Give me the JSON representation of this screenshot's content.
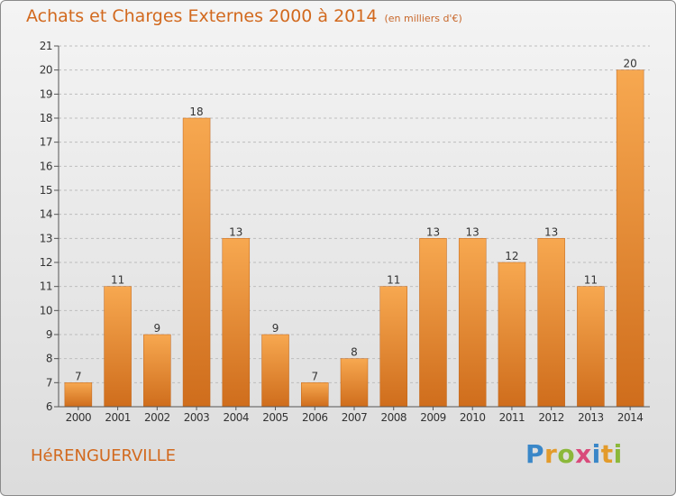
{
  "page": {
    "title": "Achats et Charges Externes 2000 à 2014",
    "unit": "(en milliers d'€)",
    "town": "HéRENGUERVILLE",
    "brand": {
      "text": "Proxiti",
      "letters": [
        {
          "char": "P",
          "color": "#3a87c8"
        },
        {
          "char": "r",
          "color": "#e39b2b"
        },
        {
          "char": "o",
          "color": "#8bb83a"
        },
        {
          "char": "x",
          "color": "#d94a7a"
        },
        {
          "char": "i",
          "color": "#3a87c8"
        },
        {
          "char": "t",
          "color": "#e39b2b"
        },
        {
          "char": "i",
          "color": "#8bb83a"
        }
      ]
    }
  },
  "colors": {
    "title": "#d2691e",
    "bar_top": "#f7a850",
    "bar_bottom": "#cf6d1c",
    "grid": "#bdbdbd",
    "axis": "#555555",
    "text": "#333333"
  },
  "chart_data": {
    "type": "bar",
    "title": "Achats et Charges Externes 2000 à 2014",
    "subtitle": "(en milliers d'€)",
    "xlabel": "",
    "ylabel": "",
    "categories": [
      "2000",
      "2001",
      "2002",
      "2003",
      "2004",
      "2005",
      "2006",
      "2007",
      "2008",
      "2009",
      "2010",
      "2011",
      "2012",
      "2013",
      "2014"
    ],
    "values": [
      7,
      11,
      9,
      18,
      13,
      9,
      7,
      8,
      11,
      13,
      13,
      12,
      13,
      11,
      20
    ],
    "data_labels": [
      "7",
      "11",
      "9",
      "18",
      "13",
      "9",
      "7",
      "8",
      "11",
      "13",
      "13",
      "12",
      "13",
      "11",
      "20"
    ],
    "ylim": [
      6,
      21
    ],
    "yticks": [
      "6",
      "7",
      "8",
      "9",
      "10",
      "11",
      "12",
      "13",
      "14",
      "15",
      "16",
      "17",
      "18",
      "19",
      "20",
      "21"
    ],
    "grid": true,
    "grid_style": "dashed horizontal"
  }
}
